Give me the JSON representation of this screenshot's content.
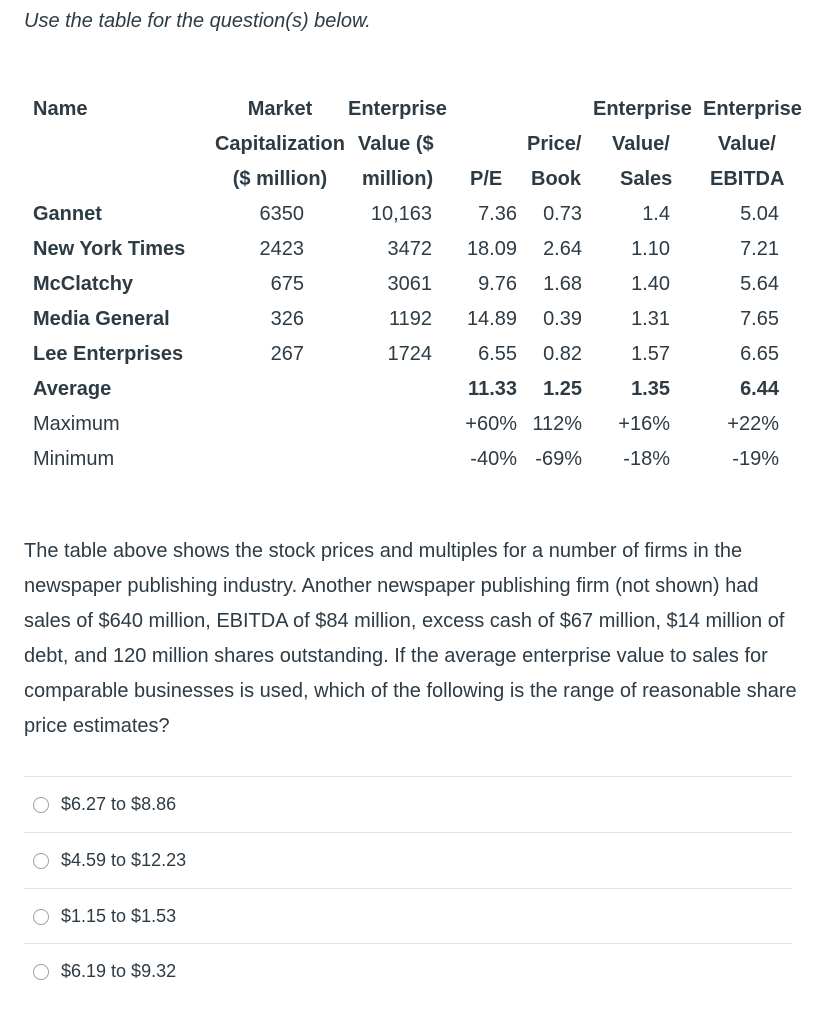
{
  "intro": "Use the table for the question(s) below.",
  "table": {
    "headers": {
      "name": "Name",
      "mktcap": [
        "Market",
        "Capitalization",
        "($ million)"
      ],
      "ev": [
        "Enterprise",
        "Value ($",
        "million)"
      ],
      "pe": "P/E",
      "pb": [
        "Price/",
        "Book"
      ],
      "evsales": [
        "Enterprise",
        "Value/",
        "Sales"
      ],
      "evebitda": [
        "Enterprise",
        "Value/",
        "EBITDA"
      ]
    },
    "rows": [
      {
        "name": "Gannet",
        "mktcap": "6350",
        "ev": "10,163",
        "pe": "7.36",
        "pb": "0.73",
        "evsales": "1.4",
        "evebitda": "5.04"
      },
      {
        "name": "New York Times",
        "mktcap": "2423",
        "ev": "3472",
        "pe": "18.09",
        "pb": "2.64",
        "evsales": "1.10",
        "evebitda": "7.21"
      },
      {
        "name": "McClatchy",
        "mktcap": "675",
        "ev": "3061",
        "pe": "9.76",
        "pb": "1.68",
        "evsales": "1.40",
        "evebitda": "5.64"
      },
      {
        "name": "Media General",
        "mktcap": "326",
        "ev": "1192",
        "pe": "14.89",
        "pb": "0.39",
        "evsales": "1.31",
        "evebitda": "7.65"
      },
      {
        "name": "Lee Enterprises",
        "mktcap": "267",
        "ev": "1724",
        "pe": "6.55",
        "pb": "0.82",
        "evsales": "1.57",
        "evebitda": "6.65"
      }
    ],
    "summary": [
      {
        "name": "Average",
        "pe": "11.33",
        "pb": "1.25",
        "evsales": "1.35",
        "evebitda": "6.44"
      },
      {
        "name": "Maximum",
        "pe": "+60%",
        "pb": "112%",
        "evsales": "+16%",
        "evebitda": "+22%"
      },
      {
        "name": "Minimum",
        "pe": "-40%",
        "pb": "-69%",
        "evsales": "-18%",
        "evebitda": "-19%"
      }
    ]
  },
  "question": "The table above shows the stock prices and multiples for a number of firms in the newspaper publishing industry. Another newspaper publishing firm (not shown) had sales of $640 million, EBITDA of $84 million, excess cash of $67 million, $14 million of debt, and 120 million shares outstanding. If the average enterprise value to sales for comparable businesses is used, which of the following is the range of reasonable share price estimates?",
  "options": [
    "$6.27 to $8.86",
    "$4.59 to $12.23",
    "$1.15 to $1.53",
    "$6.19 to $9.32"
  ]
}
